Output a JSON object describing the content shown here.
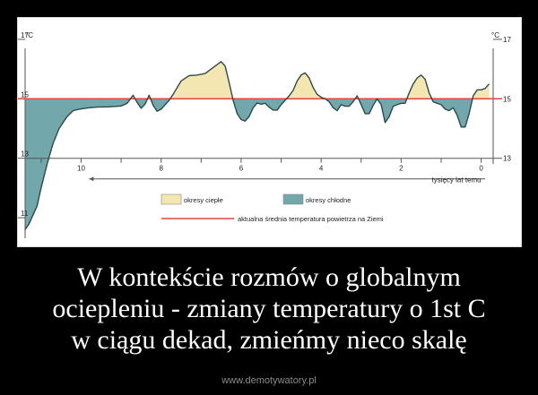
{
  "chart_data": {
    "type": "area",
    "x_unit_label": "tysięcy lat temu",
    "y_unit_left": "°C",
    "y_unit_right": "°C",
    "y_ticks": [
      17,
      15,
      13,
      11
    ],
    "x_ticks": [
      10,
      8,
      6,
      4,
      2,
      0
    ],
    "xlim": [
      11.4,
      -0.3
    ],
    "ylim": [
      10.4,
      17.6
    ],
    "reference_line": {
      "value": 15,
      "color": "#e0463d"
    },
    "series": {
      "x": [
        11.4,
        11.3,
        11.1,
        11.0,
        10.85,
        10.7,
        10.55,
        10.35,
        10.2,
        10.05,
        9.8,
        9.6,
        9.3,
        9.0,
        8.85,
        8.7,
        8.6,
        8.5,
        8.4,
        8.3,
        8.2,
        8.1,
        8.0,
        7.9,
        7.8,
        7.7,
        7.5,
        7.3,
        7.1,
        6.9,
        6.75,
        6.6,
        6.5,
        6.4,
        6.3,
        6.2,
        6.1,
        6.0,
        5.9,
        5.8,
        5.7,
        5.6,
        5.5,
        5.4,
        5.3,
        5.2,
        5.1,
        5.0,
        4.9,
        4.8,
        4.7,
        4.6,
        4.5,
        4.4,
        4.3,
        4.2,
        4.1,
        4.0,
        3.9,
        3.8,
        3.7,
        3.6,
        3.5,
        3.4,
        3.3,
        3.2,
        3.1,
        3.0,
        2.9,
        2.8,
        2.7,
        2.6,
        2.5,
        2.4,
        2.3,
        2.2,
        2.1,
        2.0,
        1.9,
        1.8,
        1.7,
        1.6,
        1.5,
        1.4,
        1.3,
        1.2,
        1.1,
        1.0,
        0.9,
        0.8,
        0.7,
        0.6,
        0.5,
        0.4,
        0.3,
        0.2,
        0.1,
        0.0,
        -0.1,
        -0.2
      ],
      "temp": [
        10.6,
        10.8,
        11.4,
        12.0,
        12.8,
        13.5,
        14.0,
        14.4,
        14.6,
        14.65,
        14.7,
        14.72,
        14.73,
        14.76,
        14.85,
        15.12,
        14.88,
        14.68,
        14.82,
        15.12,
        14.78,
        14.58,
        14.65,
        14.8,
        14.95,
        15.15,
        15.6,
        15.78,
        15.8,
        15.85,
        16.0,
        16.15,
        16.25,
        16.1,
        15.55,
        14.95,
        14.5,
        14.3,
        14.25,
        14.4,
        14.7,
        14.86,
        14.82,
        14.85,
        14.72,
        14.62,
        14.62,
        14.8,
        14.95,
        15.1,
        15.28,
        15.6,
        15.8,
        15.87,
        15.7,
        15.38,
        15.15,
        15.05,
        15.0,
        14.9,
        14.7,
        14.6,
        14.8,
        14.75,
        14.75,
        14.9,
        15.1,
        14.8,
        14.5,
        14.5,
        14.78,
        15.0,
        14.8,
        14.2,
        14.4,
        14.75,
        14.8,
        14.85,
        14.85,
        15.2,
        15.5,
        15.7,
        15.8,
        15.65,
        15.2,
        14.9,
        14.85,
        14.8,
        14.65,
        14.6,
        14.7,
        14.45,
        14.05,
        14.05,
        14.5,
        15.1,
        15.3,
        15.3,
        15.35,
        15.5
      ]
    },
    "legend": [
      {
        "label": "okresy ciepłe",
        "color": "#f4e6b1"
      },
      {
        "label": "okresy chłodne",
        "color": "#72a7ab"
      },
      {
        "label": "aktualna średnia temperatura powietrza na Ziemi",
        "color": "#e0463d"
      }
    ],
    "warm_color": "#f4e6b1",
    "cold_color": "#72a7ab",
    "line_color": "#2c4a4a"
  },
  "caption": {
    "lines": [
      "W kontekście rozmów o globalnym",
      "ociepleniu - zmiany temperatury o 1st C",
      "w ciągu dekad, zmieńmy nieco skalę"
    ]
  },
  "watermark": "www.demotywatory.pl"
}
